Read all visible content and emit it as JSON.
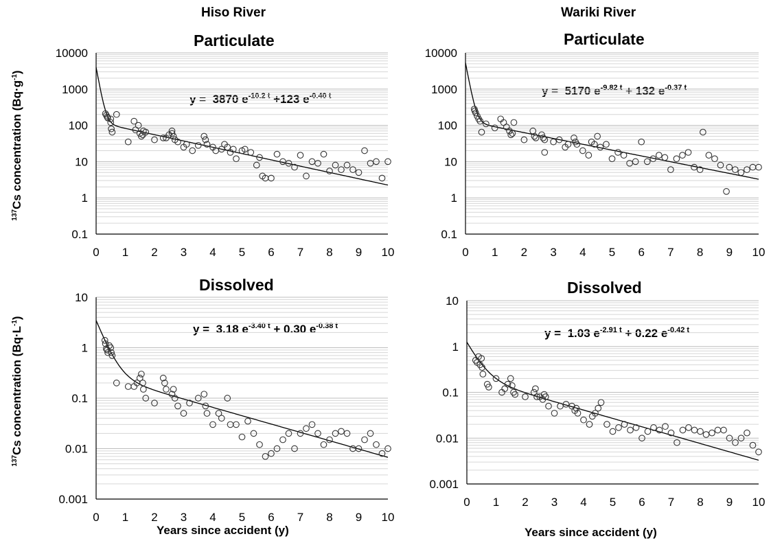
{
  "figure": {
    "ylabel_particulate": {
      "pre": "137",
      "main": "Cs concentration (Bq·g",
      "sup": "-1",
      "post": ")"
    },
    "ylabel_dissolved": {
      "pre": "137",
      "main": "Cs concentration (Bq·L",
      "sup": "-1",
      "post": ")"
    }
  },
  "chart_data": [
    {
      "type": "scatter",
      "river": "Hiso River",
      "title": "Particulate",
      "equation": {
        "a": "3870",
        "k1": "-10.2 t",
        "b": "123",
        "k2": "-0.40 t"
      },
      "equation_text": "y = 3870 e-10.2 t +123 e-0.40 t",
      "model": {
        "a": 3870,
        "k1": 10.2,
        "b": 123,
        "k2": 0.4
      },
      "xlabel": "",
      "yscale": "log",
      "xlim": [
        0,
        10
      ],
      "ylim": [
        0.1,
        10000
      ],
      "xticks": [
        "0",
        "1",
        "2",
        "3",
        "4",
        "5",
        "6",
        "7",
        "8",
        "9",
        "10"
      ],
      "yticks": [
        "0.1",
        "1",
        "10",
        "100",
        "1000",
        "10000"
      ],
      "x": [
        0.32,
        0.35,
        0.38,
        0.4,
        0.5,
        0.5,
        0.52,
        0.55,
        0.7,
        1.1,
        1.3,
        1.35,
        1.45,
        1.5,
        1.55,
        1.6,
        1.62,
        1.7,
        2.0,
        2.3,
        2.4,
        2.5,
        2.6,
        2.6,
        2.65,
        2.7,
        2.8,
        3.0,
        3.1,
        3.3,
        3.5,
        3.7,
        3.75,
        3.8,
        4.0,
        4.1,
        4.3,
        4.4,
        4.5,
        4.6,
        4.7,
        4.8,
        5.0,
        5.1,
        5.3,
        5.5,
        5.6,
        5.7,
        5.8,
        6.0,
        6.2,
        6.4,
        6.6,
        6.8,
        7.0,
        7.2,
        7.4,
        7.6,
        7.8,
        8.0,
        8.2,
        8.4,
        8.6,
        8.8,
        9.0,
        9.2,
        9.4,
        9.6,
        9.8,
        10.0
      ],
      "y": [
        210,
        190,
        170,
        160,
        150,
        120,
        80,
        65,
        200,
        35,
        130,
        75,
        100,
        60,
        50,
        55,
        70,
        65,
        40,
        45,
        45,
        55,
        60,
        70,
        50,
        40,
        35,
        25,
        30,
        20,
        28,
        50,
        40,
        30,
        25,
        20,
        22,
        30,
        25,
        18,
        22,
        12,
        20,
        22,
        18,
        8,
        13,
        4,
        3.5,
        3.5,
        16,
        10,
        9,
        7,
        15,
        4,
        10,
        9,
        16,
        5.5,
        8,
        6,
        8,
        6,
        5,
        20,
        9,
        10,
        3.5,
        10
      ]
    },
    {
      "type": "scatter",
      "river": "Wariki River",
      "title": "Particulate",
      "equation": {
        "a": "5170",
        "k1": "-9.82 t",
        "b": "132",
        "k2": "-0.37 t"
      },
      "equation_text": "y = 5170 e-9.82 t + 132 e-0.37 t",
      "model": {
        "a": 5170,
        "k1": 9.82,
        "b": 132,
        "k2": 0.37
      },
      "xlabel": "",
      "yscale": "log",
      "xlim": [
        0,
        10
      ],
      "ylim": [
        0.1,
        10000
      ],
      "xticks": [
        "0",
        "1",
        "2",
        "3",
        "4",
        "5",
        "6",
        "7",
        "8",
        "9",
        "10"
      ],
      "yticks": [
        "0.1",
        "1",
        "10",
        "100",
        "1000",
        "10000"
      ],
      "x": [
        0.3,
        0.32,
        0.35,
        0.4,
        0.45,
        0.5,
        0.55,
        0.7,
        1.0,
        1.2,
        1.3,
        1.4,
        1.5,
        1.55,
        1.6,
        1.65,
        2.0,
        2.3,
        2.35,
        2.4,
        2.6,
        2.65,
        2.7,
        2.7,
        3.0,
        3.2,
        3.4,
        3.5,
        3.7,
        3.75,
        3.8,
        4.0,
        4.2,
        4.3,
        4.4,
        4.5,
        4.6,
        4.8,
        5.0,
        5.2,
        5.4,
        5.6,
        5.8,
        6.0,
        6.2,
        6.4,
        6.6,
        6.8,
        7.0,
        7.2,
        7.4,
        7.6,
        7.8,
        8.0,
        8.1,
        8.3,
        8.5,
        8.7,
        8.9,
        9.0,
        9.2,
        9.4,
        9.6,
        9.8,
        10.0
      ],
      "y": [
        280,
        250,
        220,
        180,
        150,
        130,
        65,
        110,
        85,
        150,
        120,
        90,
        70,
        55,
        60,
        120,
        40,
        70,
        50,
        45,
        55,
        45,
        40,
        18,
        35,
        40,
        25,
        30,
        45,
        35,
        30,
        20,
        15,
        35,
        30,
        50,
        25,
        30,
        12,
        18,
        15,
        9,
        10,
        35,
        10,
        12,
        15,
        13,
        6,
        12,
        15,
        18,
        7,
        6,
        65,
        15,
        12,
        8,
        1.5,
        7,
        6,
        5,
        6,
        7,
        7
      ]
    },
    {
      "type": "scatter",
      "river": "",
      "title": "Dissolved",
      "equation": {
        "a": "3.18",
        "k1": "-3.40 t",
        "b": "0.30",
        "k2": "-0.38 t"
      },
      "equation_text": "y = 3.18 e-3.40 t + 0.30 e-0.38 t",
      "model": {
        "a": 3.18,
        "k1": 3.4,
        "b": 0.3,
        "k2": 0.38
      },
      "xlabel": "Years since accident (y)",
      "yscale": "log",
      "xlim": [
        0,
        10
      ],
      "ylim": [
        0.001,
        10
      ],
      "xticks": [
        "0",
        "1",
        "2",
        "3",
        "4",
        "5",
        "6",
        "7",
        "8",
        "9",
        "10"
      ],
      "yticks": [
        "0.001",
        "0.01",
        "0.1",
        "1",
        "10"
      ],
      "x": [
        0.3,
        0.32,
        0.35,
        0.38,
        0.4,
        0.45,
        0.5,
        0.52,
        0.55,
        0.7,
        1.1,
        1.3,
        1.4,
        1.5,
        1.55,
        1.6,
        1.62,
        1.7,
        2.0,
        2.3,
        2.35,
        2.4,
        2.6,
        2.65,
        2.7,
        2.8,
        3.0,
        3.2,
        3.5,
        3.7,
        3.75,
        3.8,
        4.0,
        4.2,
        4.3,
        4.5,
        4.6,
        4.8,
        5.0,
        5.2,
        5.4,
        5.6,
        5.8,
        6.0,
        6.2,
        6.4,
        6.6,
        6.8,
        7.0,
        7.2,
        7.4,
        7.6,
        7.8,
        8.0,
        8.2,
        8.4,
        8.6,
        8.8,
        9.0,
        9.2,
        9.4,
        9.6,
        9.8,
        10.0
      ],
      "y": [
        1.4,
        1.2,
        0.95,
        0.9,
        0.8,
        1.1,
        1.0,
        0.8,
        0.7,
        0.2,
        0.17,
        0.17,
        0.2,
        0.25,
        0.3,
        0.2,
        0.15,
        0.1,
        0.08,
        0.25,
        0.2,
        0.15,
        0.12,
        0.15,
        0.1,
        0.07,
        0.05,
        0.08,
        0.1,
        0.12,
        0.07,
        0.05,
        0.03,
        0.05,
        0.04,
        0.1,
        0.03,
        0.03,
        0.017,
        0.035,
        0.02,
        0.012,
        0.007,
        0.008,
        0.01,
        0.015,
        0.02,
        0.01,
        0.02,
        0.025,
        0.03,
        0.02,
        0.012,
        0.015,
        0.02,
        0.022,
        0.02,
        0.01,
        0.01,
        0.015,
        0.02,
        0.012,
        0.008,
        0.01
      ]
    },
    {
      "type": "scatter",
      "river": "",
      "title": "Dissolved",
      "equation": {
        "a": "1.03",
        "k1": "-2.91 t",
        "b": "0.22",
        "k2": "-0.42 t"
      },
      "equation_text": "y = 1.03 e-2.91 t + 0.22 e-0.42 t",
      "model": {
        "a": 1.03,
        "k1": 2.91,
        "b": 0.22,
        "k2": 0.42
      },
      "xlabel": "Years since accident (y)",
      "yscale": "log",
      "xlim": [
        0,
        10
      ],
      "ylim": [
        0.001,
        10
      ],
      "xticks": [
        "0",
        "1",
        "2",
        "3",
        "4",
        "5",
        "6",
        "7",
        "8",
        "9",
        "10"
      ],
      "yticks": [
        "0.001",
        "0.01",
        "0.1",
        "1",
        "10"
      ],
      "x": [
        0.3,
        0.35,
        0.4,
        0.45,
        0.5,
        0.52,
        0.55,
        0.7,
        0.75,
        1.0,
        1.2,
        1.3,
        1.4,
        1.5,
        1.55,
        1.6,
        1.65,
        2.0,
        2.3,
        2.35,
        2.4,
        2.5,
        2.6,
        2.65,
        2.7,
        2.8,
        3.0,
        3.2,
        3.4,
        3.6,
        3.7,
        3.75,
        3.8,
        4.0,
        4.2,
        4.3,
        4.4,
        4.5,
        4.6,
        4.8,
        5.0,
        5.2,
        5.4,
        5.6,
        5.8,
        6.0,
        6.2,
        6.4,
        6.6,
        6.8,
        7.0,
        7.2,
        7.4,
        7.6,
        7.8,
        8.0,
        8.2,
        8.4,
        8.6,
        8.8,
        9.0,
        9.2,
        9.4,
        9.6,
        9.8,
        10.0
      ],
      "y": [
        0.5,
        0.45,
        0.6,
        0.4,
        0.55,
        0.35,
        0.25,
        0.15,
        0.13,
        0.2,
        0.1,
        0.12,
        0.15,
        0.2,
        0.14,
        0.1,
        0.09,
        0.08,
        0.1,
        0.12,
        0.08,
        0.08,
        0.07,
        0.09,
        0.08,
        0.05,
        0.035,
        0.05,
        0.055,
        0.05,
        0.04,
        0.045,
        0.035,
        0.025,
        0.02,
        0.03,
        0.035,
        0.045,
        0.06,
        0.02,
        0.014,
        0.017,
        0.02,
        0.015,
        0.017,
        0.01,
        0.014,
        0.017,
        0.015,
        0.018,
        0.013,
        0.008,
        0.015,
        0.017,
        0.015,
        0.014,
        0.012,
        0.013,
        0.015,
        0.015,
        0.01,
        0.008,
        0.01,
        0.013,
        0.007,
        0.005
      ]
    }
  ]
}
